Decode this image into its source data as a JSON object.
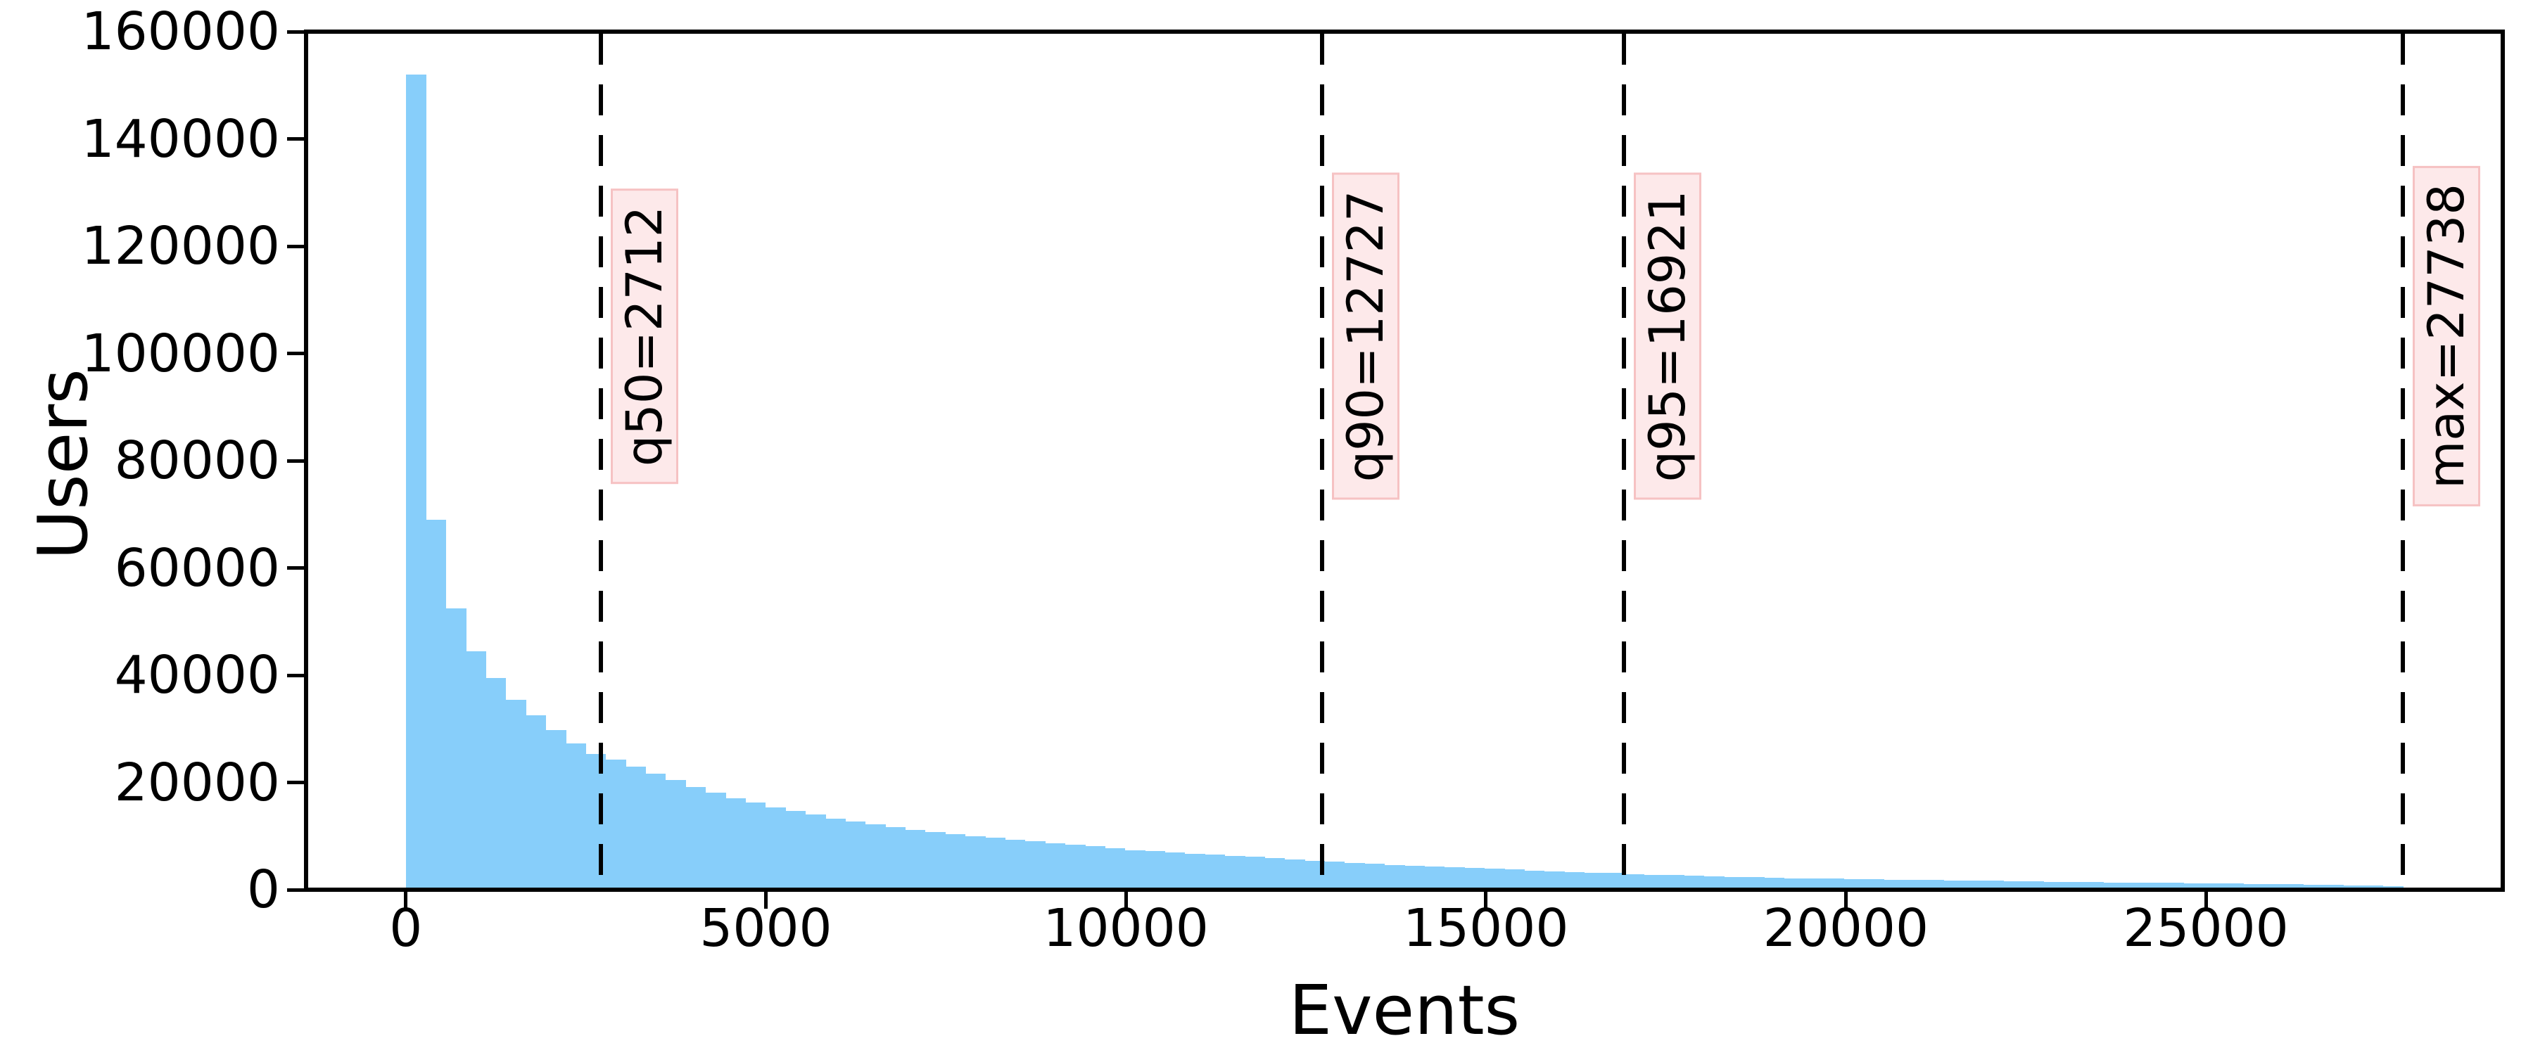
{
  "chart_data": {
    "type": "bar",
    "subtype": "histogram",
    "title": "",
    "xlabel": "Events",
    "ylabel": "Users",
    "xlim": [
      -1386,
      29124
    ],
    "ylim": [
      0,
      160000
    ],
    "grid": false,
    "legend": null,
    "bar_color": "#87CEFA",
    "x_ticks": [
      {
        "value": 0,
        "label": "0"
      },
      {
        "value": 5000,
        "label": "5000"
      },
      {
        "value": 10000,
        "label": "10000"
      },
      {
        "value": 15000,
        "label": "15000"
      },
      {
        "value": 20000,
        "label": "20000"
      },
      {
        "value": 25000,
        "label": "25000"
      }
    ],
    "y_ticks": [
      {
        "value": 0,
        "label": "0"
      },
      {
        "value": 20000,
        "label": "20000"
      },
      {
        "value": 40000,
        "label": "40000"
      },
      {
        "value": 60000,
        "label": "60000"
      },
      {
        "value": 80000,
        "label": "80000"
      },
      {
        "value": 100000,
        "label": "100000"
      },
      {
        "value": 120000,
        "label": "120000"
      },
      {
        "value": 140000,
        "label": "140000"
      },
      {
        "value": 160000,
        "label": "160000"
      }
    ],
    "histogram": {
      "bin_start": 1,
      "bin_width": 277.37,
      "counts": [
        152000,
        69000,
        52500,
        44500,
        39500,
        35400,
        32500,
        29800,
        27300,
        25300,
        24200,
        23000,
        21700,
        20500,
        19100,
        18100,
        17050,
        16200,
        15400,
        14700,
        14000,
        13300,
        12700,
        12200,
        11700,
        11200,
        10800,
        10400,
        10000,
        9650,
        9300,
        9000,
        8700,
        8400,
        8100,
        7750,
        7400,
        7150,
        6900,
        6700,
        6500,
        6300,
        6100,
        5900,
        5650,
        5400,
        5200,
        5000,
        4800,
        4650,
        4500,
        4350,
        4200,
        4050,
        3900,
        3750,
        3600,
        3450,
        3300,
        3200,
        3100,
        2950,
        2800,
        2700,
        2600,
        2500,
        2400,
        2300,
        2250,
        2150,
        2100,
        2050,
        2000,
        1950,
        1900,
        1850,
        1800,
        1750,
        1700,
        1650,
        1600,
        1550,
        1500,
        1450,
        1400,
        1370,
        1330,
        1300,
        1270,
        1230,
        1200,
        1150,
        1100,
        1050,
        1000,
        950,
        900,
        850,
        780,
        700
      ]
    },
    "annotations": [
      {
        "id": "q50",
        "label": "q50=2712",
        "x": 2712
      },
      {
        "id": "q90",
        "label": "q90=12727",
        "x": 12727
      },
      {
        "id": "q95",
        "label": "q95=16921",
        "x": 16921
      },
      {
        "id": "max",
        "label": "max=27738",
        "x": 27738
      }
    ],
    "annotation_style": {
      "line_color": "#000000",
      "line_style": "dashed",
      "box_fill": "#FDE9EA",
      "box_edge": "#F6C2C3",
      "text_color": "#000000"
    }
  }
}
